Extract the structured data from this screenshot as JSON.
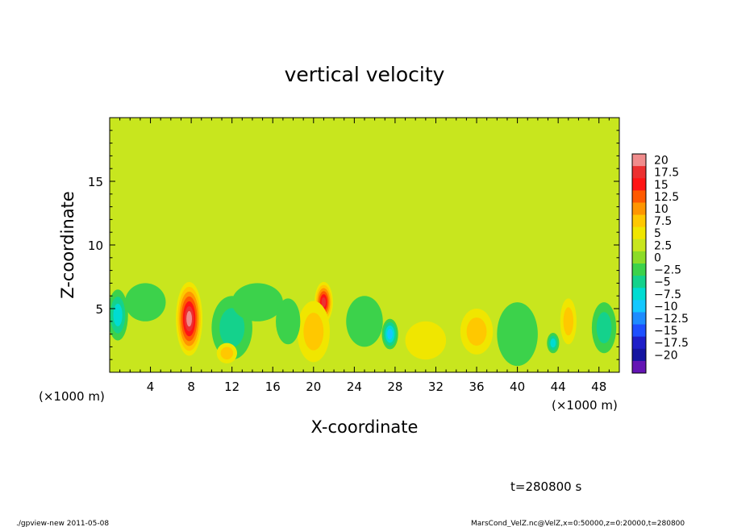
{
  "chart_data": {
    "type": "heatmap",
    "title": "vertical velocity",
    "xlabel": "X-coordinate",
    "ylabel": "Z-coordinate",
    "x_unit_left": "(×1000 m)",
    "x_unit_right": "(×1000 m)",
    "xlim": [
      0,
      50
    ],
    "ylim": [
      0,
      20
    ],
    "x_ticks": [
      4,
      8,
      12,
      16,
      20,
      24,
      28,
      32,
      36,
      40,
      44,
      48
    ],
    "x_tick_labels": [
      "4",
      "8",
      "12",
      "16",
      "20",
      "24",
      "28",
      "32",
      "36",
      "40",
      "44",
      "48"
    ],
    "y_ticks": [
      5,
      10,
      15
    ],
    "y_tick_labels": [
      "5",
      "10",
      "15"
    ],
    "background_value": 0.5,
    "features": [
      {
        "x": 7.8,
        "z": 4.2,
        "rx": 1.3,
        "rz": 2.9,
        "value": 19
      },
      {
        "x": 21,
        "z": 5.5,
        "rx": 0.9,
        "rz": 1.6,
        "value": 15
      },
      {
        "x": 20,
        "z": 3.2,
        "rx": 1.6,
        "rz": 2.4,
        "value": 7
      },
      {
        "x": 27.5,
        "z": 3.0,
        "rx": 0.8,
        "rz": 1.2,
        "value": -12
      },
      {
        "x": 0.8,
        "z": 4.5,
        "rx": 1.0,
        "rz": 2.0,
        "value": -9
      },
      {
        "x": 36,
        "z": 3.2,
        "rx": 1.6,
        "rz": 1.8,
        "value": 7
      },
      {
        "x": 45,
        "z": 4.0,
        "rx": 0.8,
        "rz": 1.8,
        "value": 6
      },
      {
        "x": 43.5,
        "z": 2.3,
        "rx": 0.6,
        "rz": 0.8,
        "value": -8
      },
      {
        "x": 12,
        "z": 3.5,
        "rx": 2.0,
        "rz": 2.5,
        "value": -5
      },
      {
        "x": 14.5,
        "z": 5.5,
        "rx": 2.5,
        "rz": 1.5,
        "value": -4
      },
      {
        "x": 25,
        "z": 4.0,
        "rx": 1.8,
        "rz": 2.0,
        "value": -4
      },
      {
        "x": 31,
        "z": 2.5,
        "rx": 2.0,
        "rz": 1.5,
        "value": 4
      },
      {
        "x": 40,
        "z": 3.0,
        "rx": 2.0,
        "rz": 2.5,
        "value": -4
      },
      {
        "x": 48.5,
        "z": 3.5,
        "rx": 1.2,
        "rz": 2.0,
        "value": -5
      },
      {
        "x": 17.5,
        "z": 4.0,
        "rx": 1.2,
        "rz": 1.8,
        "value": -4
      },
      {
        "x": 11.5,
        "z": 1.5,
        "rx": 1.0,
        "rz": 0.8,
        "value": 5
      },
      {
        "x": 3.5,
        "z": 5.5,
        "rx": 2.0,
        "rz": 1.5,
        "value": -3
      }
    ],
    "colorbar": {
      "labels": [
        "20",
        "17.5",
        "15",
        "12.5",
        "10",
        "7.5",
        "5",
        "2.5",
        "0",
        "−2.5",
        "−5",
        "−7.5",
        "−10",
        "−12.5",
        "−15",
        "−17.5",
        "−20"
      ],
      "colors": [
        "#f08c8c",
        "#ec3030",
        "#ff1414",
        "#ff5a00",
        "#ff9600",
        "#ffc800",
        "#f0e600",
        "#c8e61e",
        "#8cdc28",
        "#3cd24b",
        "#14d28c",
        "#00dcd2",
        "#14c8ff",
        "#1e8cff",
        "#1e50ff",
        "#1e1ec8",
        "#1414a0",
        "#6414b4"
      ]
    }
  },
  "time_label": "t=280800 s",
  "footer_left": "./gpview-new  2011-05-08",
  "footer_right": "MarsCond_VelZ.nc@VelZ,x=0:50000,z=0:20000,t=280800"
}
